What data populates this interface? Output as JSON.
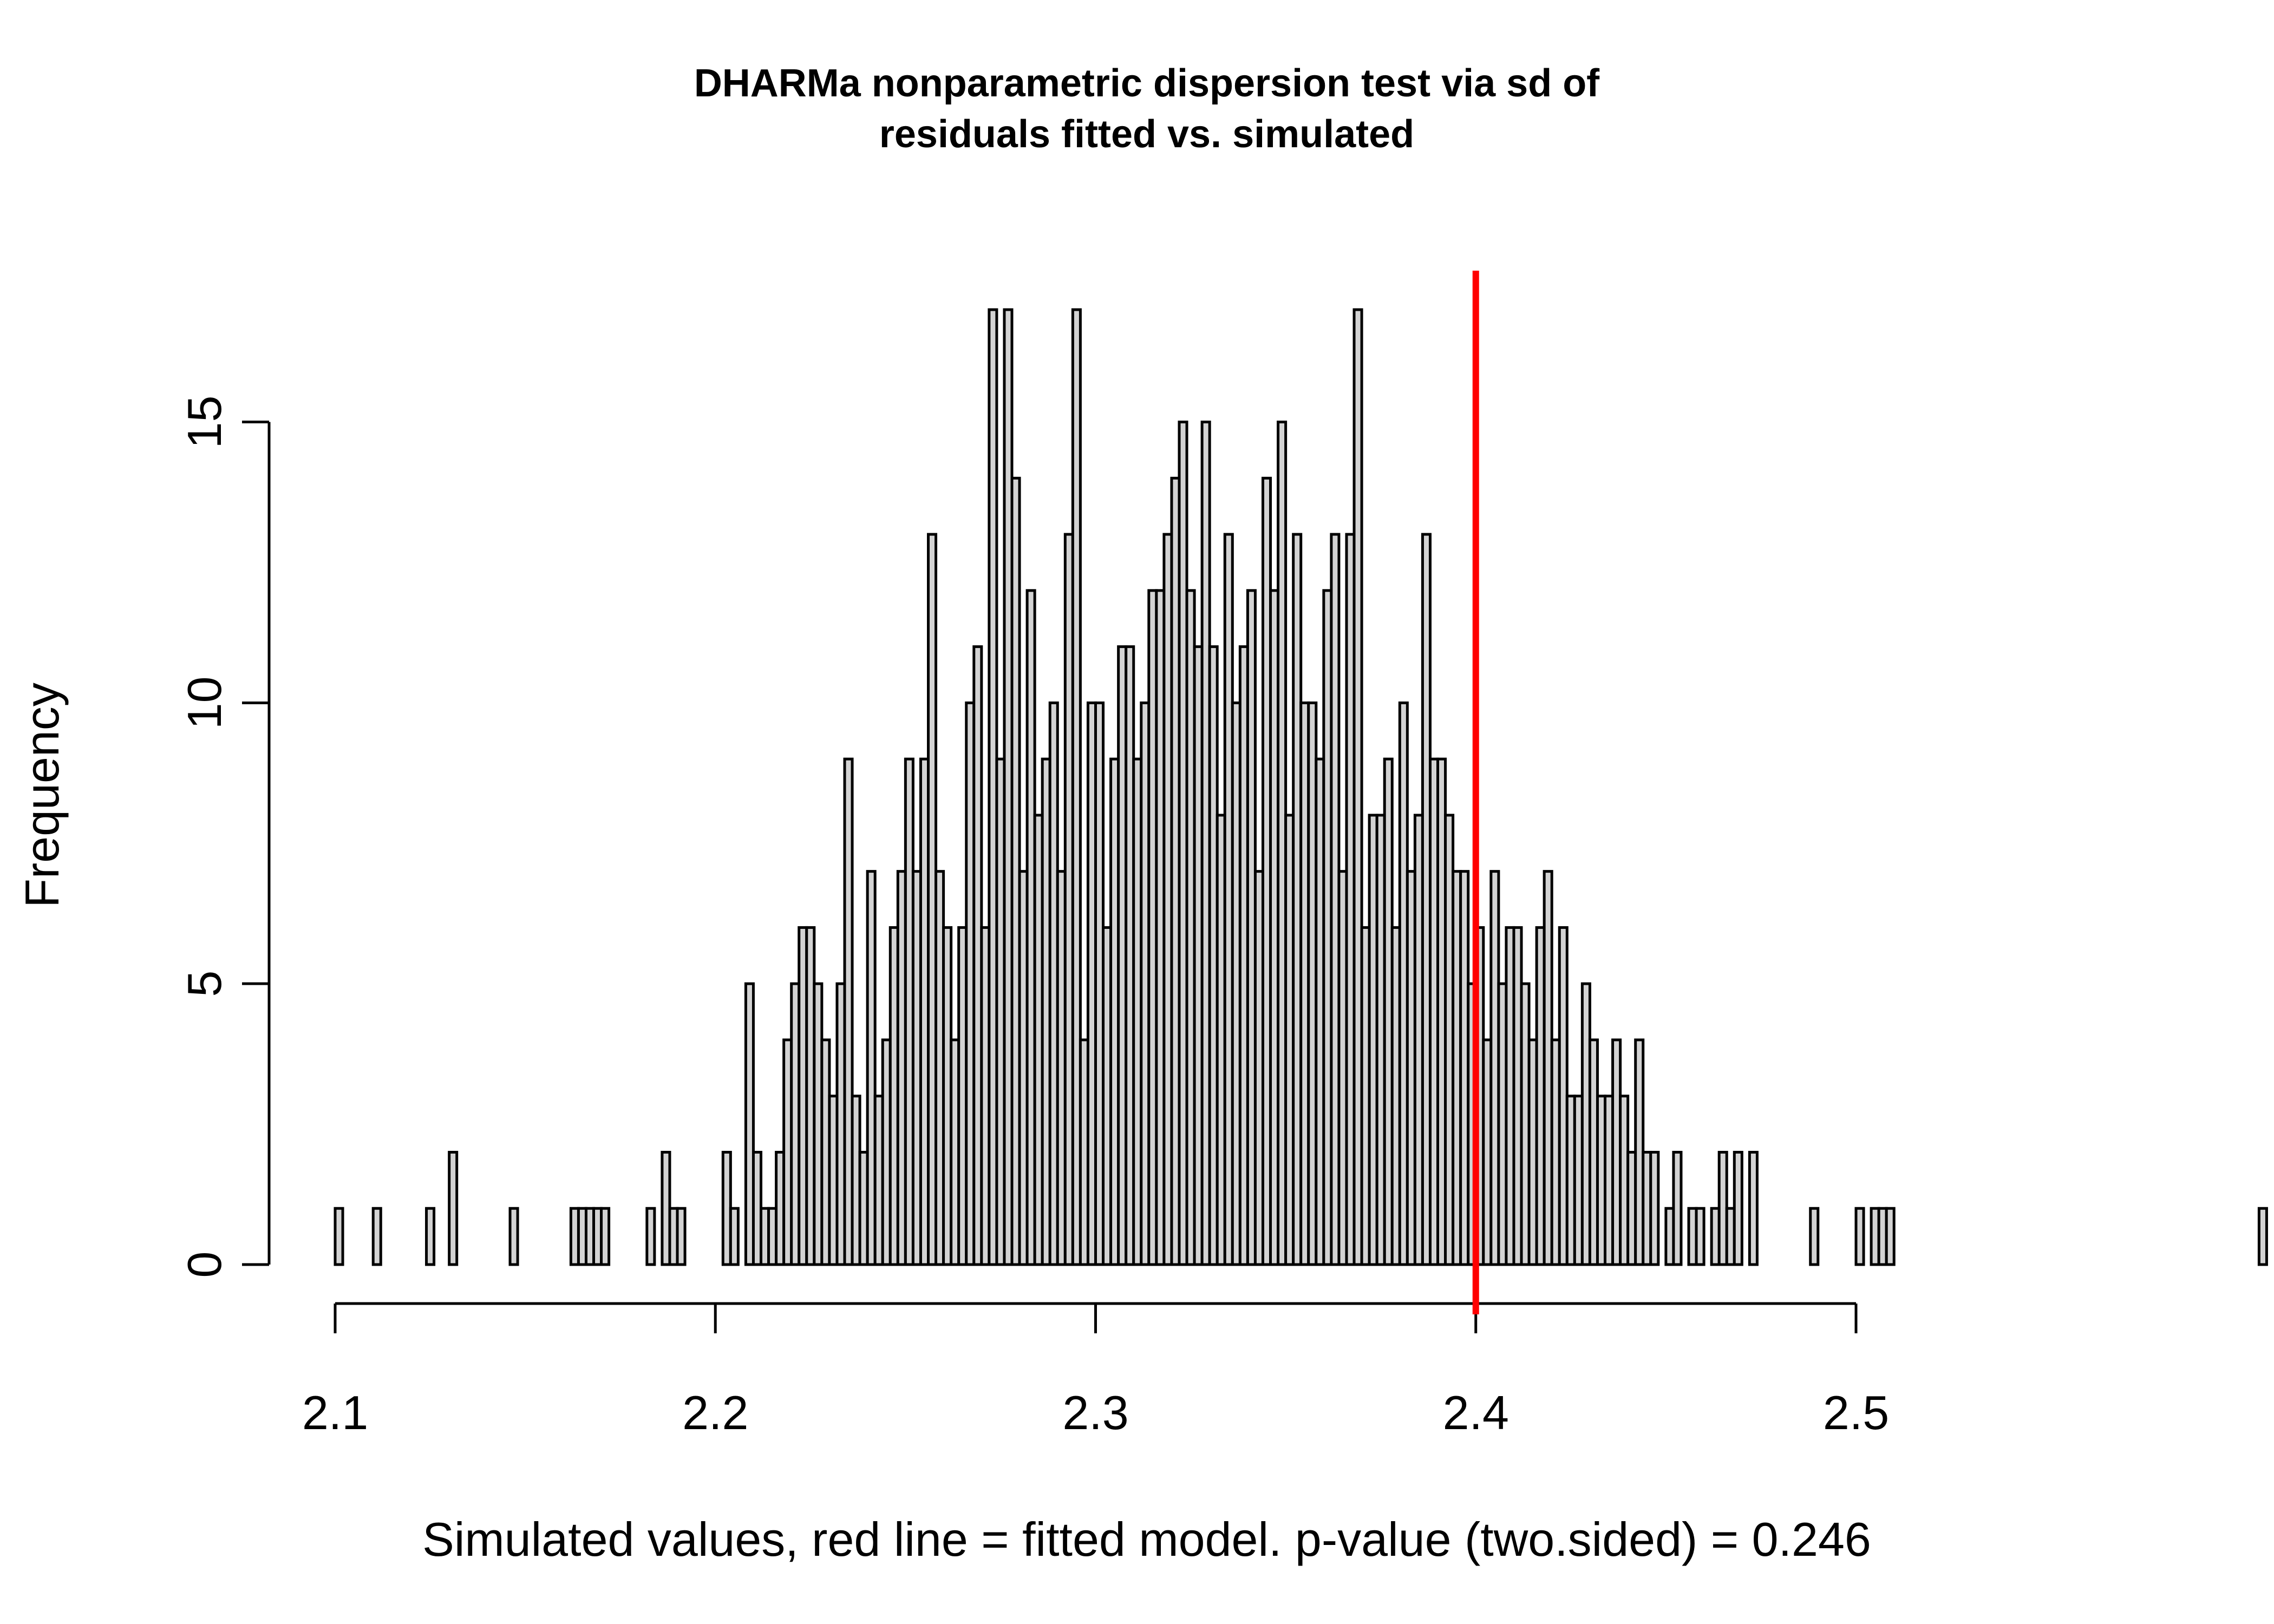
{
  "chart_data": {
    "type": "bar",
    "title_lines": [
      "DHARMa nonparametric dispersion test via sd of",
      "residuals fitted vs. simulated"
    ],
    "xlabel": "Simulated values, red line = fitted model. p-value (two.sided) = 0.246",
    "ylabel": "Frequency",
    "bin_start": 2.1,
    "bin_width": 0.002,
    "xlim": [
      2.1,
      2.5
    ],
    "ylim": [
      0,
      17
    ],
    "x_ticks": [
      2.1,
      2.2,
      2.3,
      2.4,
      2.5
    ],
    "x_tick_labels": [
      "2.1",
      "2.2",
      "2.3",
      "2.4",
      "2.5"
    ],
    "y_ticks": [
      0,
      5,
      10,
      15
    ],
    "y_tick_labels": [
      "0",
      "5",
      "10",
      "15"
    ],
    "counts": [
      1,
      0,
      0,
      0,
      0,
      1,
      0,
      0,
      0,
      0,
      0,
      0,
      1,
      0,
      0,
      2,
      0,
      0,
      0,
      0,
      0,
      0,
      0,
      1,
      0,
      0,
      0,
      0,
      0,
      0,
      0,
      1,
      1,
      1,
      1,
      1,
      0,
      0,
      0,
      0,
      0,
      1,
      0,
      2,
      1,
      1,
      0,
      0,
      0,
      0,
      0,
      2,
      1,
      0,
      5,
      2,
      1,
      1,
      2,
      4,
      5,
      6,
      6,
      5,
      4,
      3,
      5,
      9,
      3,
      2,
      7,
      3,
      4,
      6,
      7,
      9,
      7,
      9,
      13,
      7,
      6,
      4,
      6,
      10,
      11,
      6,
      17,
      9,
      17,
      14,
      7,
      12,
      8,
      9,
      10,
      7,
      13,
      17,
      4,
      10,
      10,
      6,
      9,
      11,
      11,
      9,
      10,
      12,
      12,
      13,
      14,
      15,
      12,
      11,
      15,
      11,
      8,
      13,
      10,
      11,
      12,
      7,
      14,
      12,
      15,
      8,
      13,
      10,
      10,
      9,
      12,
      13,
      7,
      13,
      17,
      6,
      8,
      8,
      9,
      6,
      10,
      7,
      8,
      13,
      9,
      9,
      8,
      7,
      7,
      5,
      6,
      4,
      7,
      5,
      6,
      6,
      5,
      4,
      6,
      7,
      4,
      6,
      3,
      3,
      5,
      4,
      3,
      3,
      4,
      3,
      2,
      4,
      2,
      2,
      0,
      1,
      2,
      0,
      1,
      1,
      0,
      1,
      2,
      1,
      2,
      0,
      2,
      0,
      0,
      0,
      0,
      0,
      0,
      0,
      1,
      0,
      0,
      0,
      0,
      0,
      1,
      0,
      1,
      1,
      1,
      0,
      0,
      0,
      0,
      0,
      0,
      0,
      0,
      0,
      0,
      0,
      0,
      0,
      0,
      0,
      0,
      0,
      0,
      0,
      0,
      0,
      0,
      0,
      0,
      0,
      0,
      0,
      0,
      0,
      0,
      0,
      0,
      0,
      0,
      0,
      0,
      0,
      0,
      0,
      0,
      0,
      0,
      0,
      0,
      0,
      0,
      0,
      0,
      1
    ],
    "observed_value": 2.4,
    "observed_line_color": "#ff0000",
    "bar_color": "#d3d3d3",
    "grid": false,
    "legend": "none"
  }
}
